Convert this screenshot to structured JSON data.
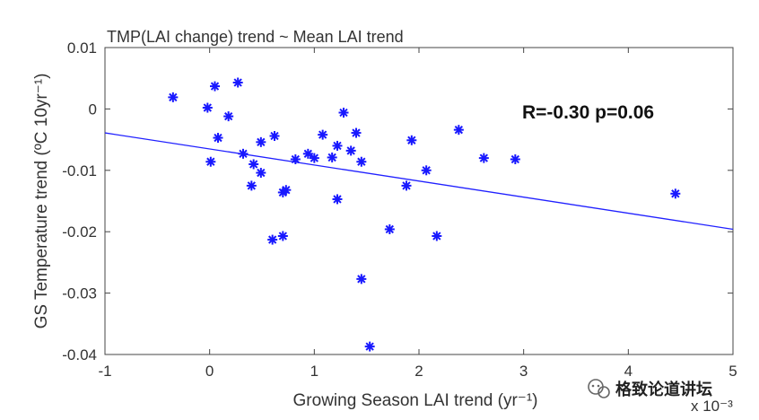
{
  "chart_data": {
    "type": "scatter",
    "title": "TMP(LAI change) trend ~ Mean LAI trend",
    "xlabel": "Growing Season LAI trend (yr⁻¹)",
    "ylabel": "GS Temperature trend (ºC 10yr⁻¹)",
    "x_scale_label": "x 10⁻³",
    "xlim": [
      -1,
      5
    ],
    "ylim": [
      -0.04,
      0.01
    ],
    "x_ticks": [
      -1,
      0,
      1,
      2,
      3,
      4,
      5
    ],
    "x_tick_labels": [
      "-1",
      "0",
      "1",
      "2",
      "3",
      "4",
      "5"
    ],
    "y_ticks": [
      0.01,
      0,
      -0.01,
      -0.02,
      -0.03,
      -0.04
    ],
    "y_tick_labels": [
      "0.01",
      "0",
      "-0.01",
      "-0.02",
      "-0.03",
      "-0.04"
    ],
    "annotation": "R=-0.30 p=0.06",
    "fit_line": {
      "x": [
        -1,
        5
      ],
      "y": [
        -0.0039,
        -0.0196
      ]
    },
    "points": [
      {
        "x": -0.35,
        "y": 0.0019
      },
      {
        "x": -0.02,
        "y": 0.0002
      },
      {
        "x": 0.05,
        "y": 0.0037
      },
      {
        "x": 0.27,
        "y": 0.0043
      },
      {
        "x": 0.08,
        "y": -0.0047
      },
      {
        "x": 0.18,
        "y": -0.0012
      },
      {
        "x": 0.01,
        "y": -0.0086
      },
      {
        "x": 0.32,
        "y": -0.0073
      },
      {
        "x": 0.42,
        "y": -0.009
      },
      {
        "x": 0.4,
        "y": -0.0125
      },
      {
        "x": 0.49,
        "y": -0.0054
      },
      {
        "x": 0.49,
        "y": -0.0104
      },
      {
        "x": 0.62,
        "y": -0.0044
      },
      {
        "x": 0.7,
        "y": -0.0136
      },
      {
        "x": 0.73,
        "y": -0.0132
      },
      {
        "x": 0.6,
        "y": -0.0213
      },
      {
        "x": 0.7,
        "y": -0.0207
      },
      {
        "x": 0.82,
        "y": -0.0082
      },
      {
        "x": 0.94,
        "y": -0.0073
      },
      {
        "x": 1.0,
        "y": -0.008
      },
      {
        "x": 1.08,
        "y": -0.0042
      },
      {
        "x": 1.17,
        "y": -0.0079
      },
      {
        "x": 1.22,
        "y": -0.006
      },
      {
        "x": 1.22,
        "y": -0.0147
      },
      {
        "x": 1.28,
        "y": -0.0006
      },
      {
        "x": 1.35,
        "y": -0.0068
      },
      {
        "x": 1.4,
        "y": -0.0039
      },
      {
        "x": 1.45,
        "y": -0.0086
      },
      {
        "x": 1.45,
        "y": -0.0277
      },
      {
        "x": 1.53,
        "y": -0.0387
      },
      {
        "x": 1.72,
        "y": -0.0196
      },
      {
        "x": 1.88,
        "y": -0.0125
      },
      {
        "x": 1.93,
        "y": -0.0051
      },
      {
        "x": 2.07,
        "y": -0.01
      },
      {
        "x": 2.17,
        "y": -0.0207
      },
      {
        "x": 2.38,
        "y": -0.0034
      },
      {
        "x": 2.62,
        "y": -0.008
      },
      {
        "x": 2.92,
        "y": -0.0082
      },
      {
        "x": 4.45,
        "y": -0.0138
      }
    ],
    "marker": "asterisk",
    "marker_color": "#1818ff",
    "line_color": "#2020ff"
  },
  "watermark": {
    "text": "格致论道讲坛",
    "icon": "wechat-icon"
  }
}
